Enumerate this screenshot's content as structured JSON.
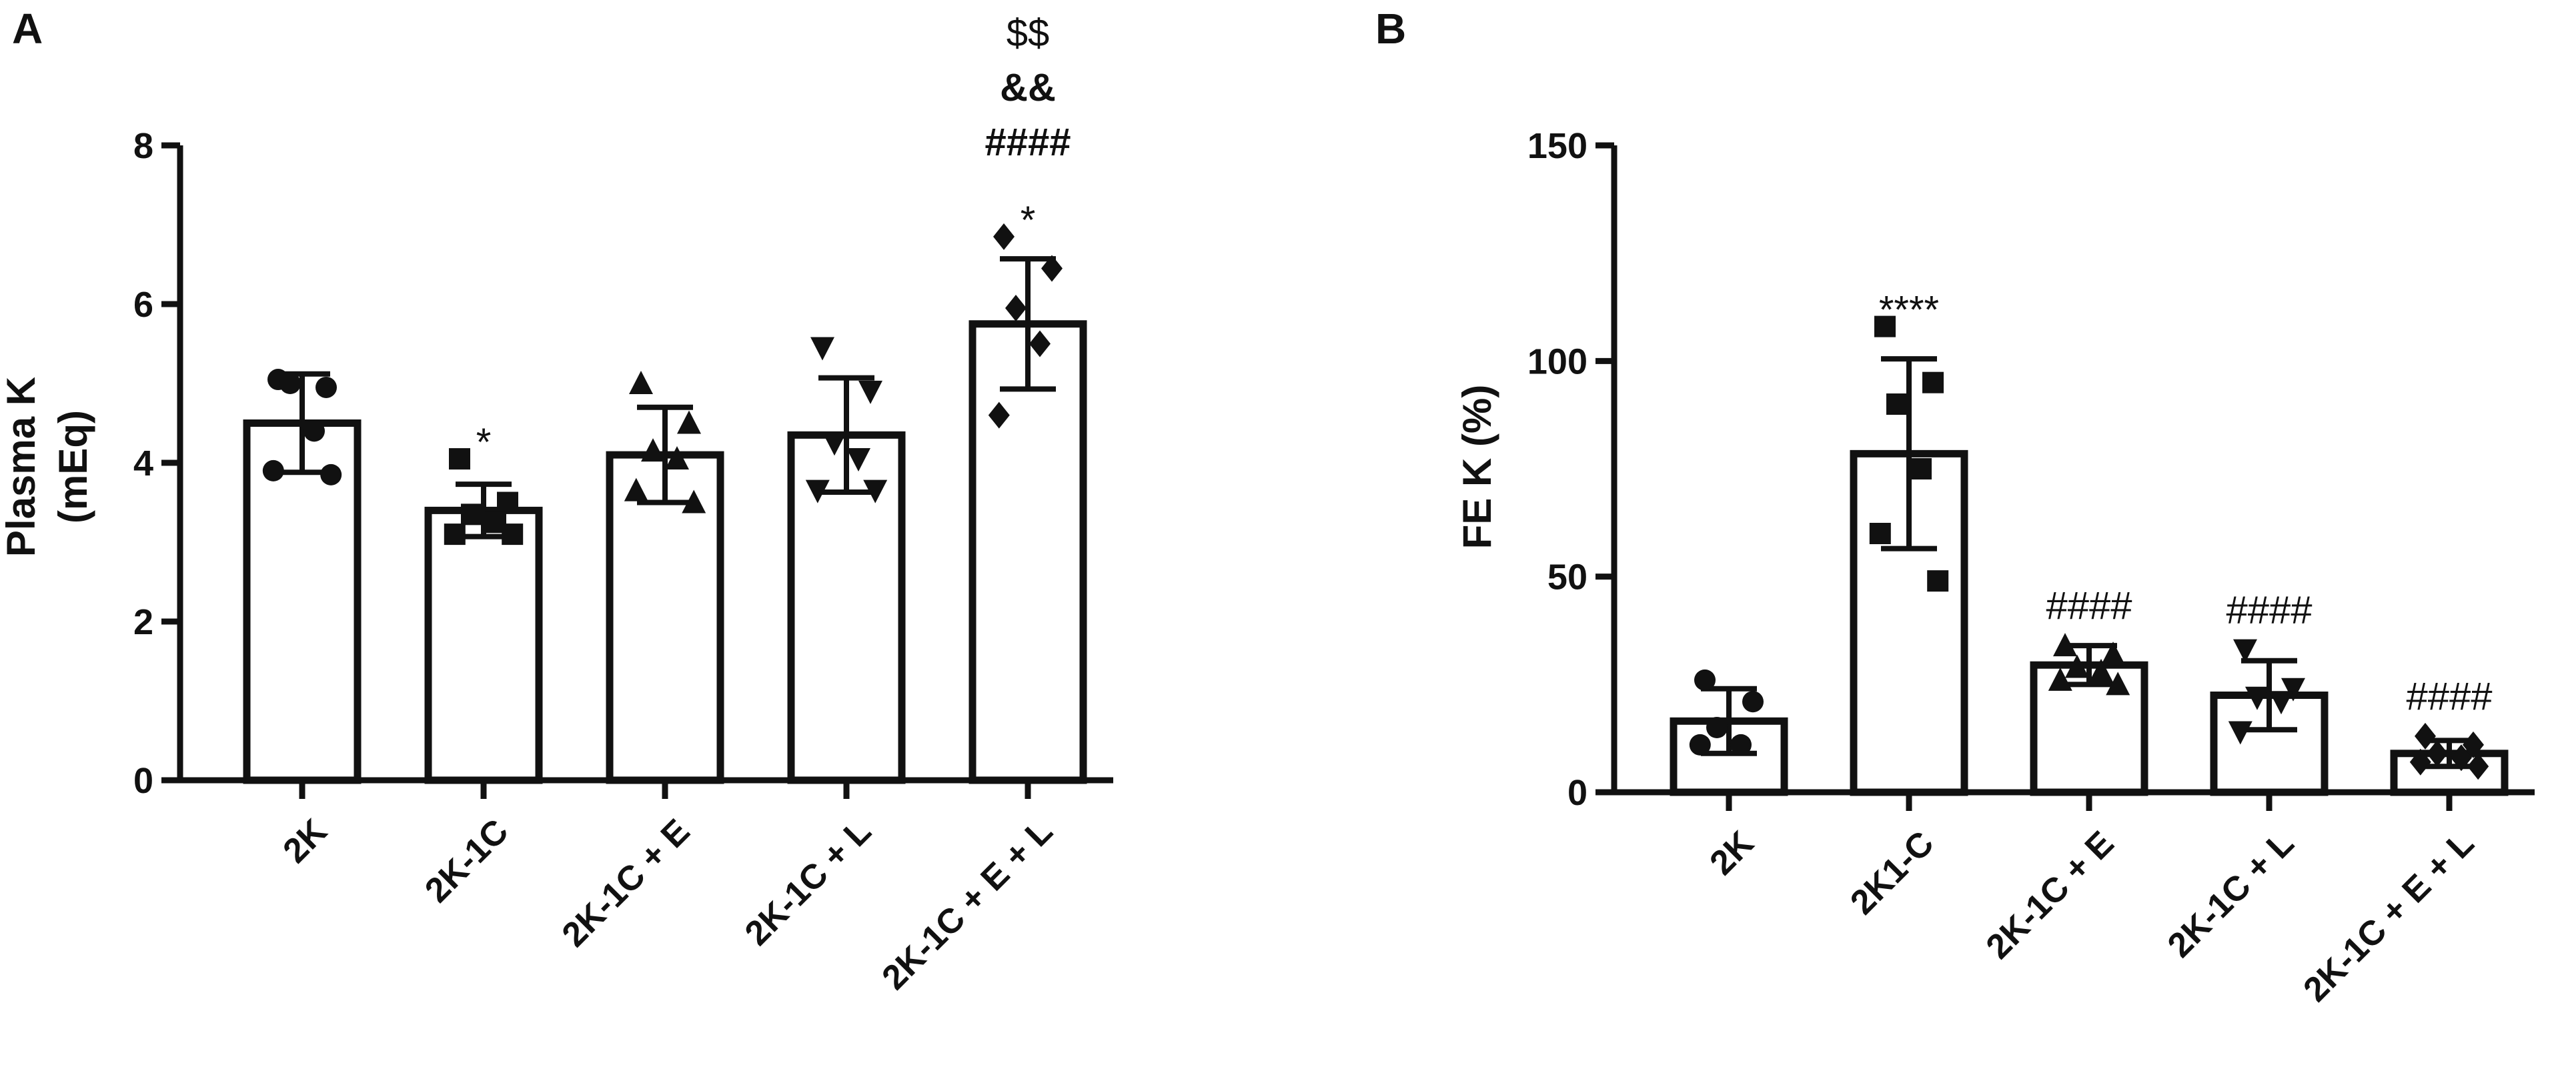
{
  "chart_data": [
    {
      "panel": "A",
      "type": "bar",
      "ylabel_line1": "Plasma K",
      "ylabel_line2": "(mEq)",
      "ylim": [
        0,
        8
      ],
      "yticks": [
        "0",
        "2",
        "4",
        "6",
        "8"
      ],
      "ytick_values": [
        0,
        2,
        4,
        6,
        8
      ],
      "categories": [
        "2K",
        "2K-1C",
        "2K-1C + E",
        "2K-1C + L",
        "2K-1C + E + L"
      ],
      "values": [
        4.5,
        3.4,
        4.1,
        4.35,
        5.75
      ],
      "sd": [
        0.62,
        0.33,
        0.6,
        0.72,
        0.82
      ],
      "markers": [
        "circle",
        "square",
        "triangle-up",
        "triangle-down",
        "diamond"
      ],
      "points": [
        [
          5.05,
          4.95,
          5.0,
          4.4,
          3.9,
          3.85
        ],
        [
          4.05,
          3.5,
          3.35,
          3.25,
          3.1,
          3.1
        ],
        [
          5.0,
          4.5,
          4.15,
          4.05,
          3.65,
          3.5
        ],
        [
          5.45,
          4.9,
          4.25,
          4.05,
          3.65,
          3.65
        ],
        [
          6.85,
          6.45,
          5.95,
          5.5,
          4.6
        ]
      ],
      "annotations": [
        {
          "category": "2K-1C",
          "lines": [
            "*"
          ]
        },
        {
          "category": "2K-1C + E + L",
          "lines": [
            "$$",
            "&&",
            "####",
            "*"
          ]
        }
      ]
    },
    {
      "panel": "B",
      "type": "bar",
      "ylabel": "FE K (%)",
      "ylim": [
        0,
        150
      ],
      "yticks": [
        "0",
        "50",
        "100",
        "150"
      ],
      "ytick_values": [
        0,
        50,
        100,
        150
      ],
      "categories": [
        "2K",
        "2K1-C",
        "2K-1C + E",
        "2K-1C + L",
        "2K-1C + E + L"
      ],
      "values": [
        16.5,
        78.5,
        29.5,
        22.5,
        9.0
      ],
      "sd": [
        7.5,
        22.0,
        4.5,
        8.0,
        3.0
      ],
      "markers": [
        "circle",
        "square",
        "triangle-up",
        "triangle-down",
        "diamond"
      ],
      "points": [
        [
          26,
          21,
          15,
          11,
          11
        ],
        [
          108,
          95,
          90,
          75,
          60,
          49
        ],
        [
          34,
          32,
          29,
          28,
          26,
          25
        ],
        [
          33,
          24,
          22,
          21,
          14
        ],
        [
          13,
          11,
          9,
          8,
          7,
          6
        ]
      ],
      "annotations": [
        {
          "category": "2K1-C",
          "lines": [
            "****"
          ]
        },
        {
          "category": "2K-1C + E",
          "lines": [
            "####"
          ]
        },
        {
          "category": "2K-1C + L",
          "lines": [
            "####"
          ]
        },
        {
          "category": "2K-1C + E + L",
          "lines": [
            "####"
          ]
        }
      ]
    }
  ]
}
